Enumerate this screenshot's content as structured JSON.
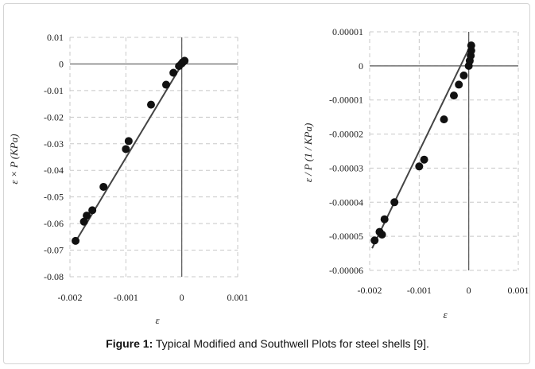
{
  "caption": {
    "label": "Figure 1:",
    "text": "Typical Modified and Southwell Plots for steel shells [9]."
  },
  "chart_data": [
    {
      "type": "scatter",
      "title": "",
      "xlabel": "ε",
      "ylabel": "ε × P  (KPa)",
      "xlim": [
        -0.002,
        0.001
      ],
      "ylim": [
        -0.08,
        0.01
      ],
      "x_ticks": [
        "-0.002",
        "-0.001",
        "0",
        "0.001"
      ],
      "x_tick_values": [
        -0.002,
        -0.001,
        0,
        0.001
      ],
      "y_ticks": [
        "0.01",
        "0",
        "-0.01",
        "-0.02",
        "-0.03",
        "-0.04",
        "-0.05",
        "-0.06",
        "-0.07",
        "-0.08"
      ],
      "y_tick_values": [
        0.01,
        0,
        -0.01,
        -0.02,
        -0.03,
        -0.04,
        -0.05,
        -0.06,
        -0.07,
        -0.08
      ],
      "grid": true,
      "marker_color": "#111111",
      "line_color": "#444444",
      "trendline": [
        [
          -0.0019,
          -0.0668
        ],
        [
          5e-05,
          0.0015
        ]
      ],
      "points": [
        [
          -0.0019,
          -0.0665
        ],
        [
          -0.00175,
          -0.0593
        ],
        [
          -0.0017,
          -0.057
        ],
        [
          -0.0016,
          -0.055
        ],
        [
          -0.0014,
          -0.0462
        ],
        [
          -0.001,
          -0.032
        ],
        [
          -0.00095,
          -0.029
        ],
        [
          -0.00055,
          -0.0153
        ],
        [
          -0.00028,
          -0.0078
        ],
        [
          -0.00015,
          -0.0033
        ],
        [
          -5e-05,
          -0.0008
        ],
        [
          0.0,
          0.0002
        ],
        [
          2e-05,
          0.0007
        ],
        [
          5e-05,
          0.0012
        ]
      ]
    },
    {
      "type": "scatter",
      "title": "",
      "xlabel": "ε",
      "ylabel": "ε / P  (1 / KPa)",
      "xlim": [
        -0.002,
        0.001
      ],
      "ylim": [
        -6e-05,
        1e-05
      ],
      "x_ticks": [
        "-0.002",
        "-0.001",
        "0",
        "0.001"
      ],
      "x_tick_values": [
        -0.002,
        -0.001,
        0,
        0.001
      ],
      "y_ticks": [
        "0.00001",
        "0",
        "-0.00001",
        "-0.00002",
        "-0.00003",
        "-0.00004",
        "-0.00005",
        "-0.00006"
      ],
      "y_tick_values": [
        1e-05,
        0,
        -1e-05,
        -2e-05,
        -3e-05,
        -4e-05,
        -5e-05,
        -6e-05
      ],
      "grid": true,
      "marker_color": "#111111",
      "line_color": "#444444",
      "trendline": [
        [
          -0.00195,
          -5.35e-05
        ],
        [
          5e-05,
          6.5e-06
        ]
      ],
      "points": [
        [
          -0.0019,
          -5.12e-05
        ],
        [
          -0.0018,
          -4.87e-05
        ],
        [
          -0.00175,
          -4.95e-05
        ],
        [
          -0.0017,
          -4.5e-05
        ],
        [
          -0.0015,
          -4e-05
        ],
        [
          -0.001,
          -2.95e-05
        ],
        [
          -0.0009,
          -2.75e-05
        ],
        [
          -0.0005,
          -1.57e-05
        ],
        [
          -0.0003,
          -8.7e-06
        ],
        [
          -0.0002,
          -5.5e-06
        ],
        [
          -0.0001,
          -2.8e-06
        ],
        [
          0.0,
          0.0
        ],
        [
          2e-05,
          1.5e-06
        ],
        [
          4e-05,
          3e-06
        ],
        [
          5e-05,
          4.5e-06
        ],
        [
          5e-05,
          6e-06
        ]
      ]
    }
  ]
}
